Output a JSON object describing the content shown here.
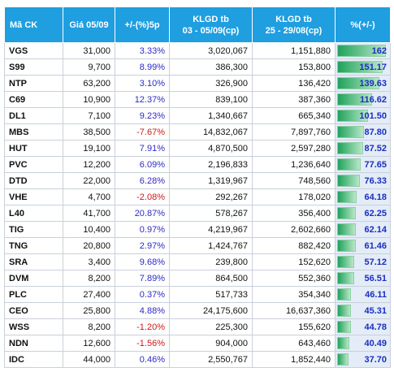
{
  "table": {
    "headers": [
      [
        "Mã CK"
      ],
      [
        "Giá 05/09"
      ],
      [
        "+/-(%)5p"
      ],
      [
        "KLGD tb",
        "03 - 05/09(cp)"
      ],
      [
        "KLGD tb",
        "25 - 29/08(cp)"
      ],
      [
        "%(+/-)"
      ]
    ],
    "rows": [
      [
        "VGS",
        "31,000",
        "3.33%",
        "3,020,067",
        "1,151,880",
        "162"
      ],
      [
        "S99",
        "9,700",
        "8.99%",
        "386,300",
        "153,800",
        "151.17"
      ],
      [
        "NTP",
        "63,200",
        "3.10%",
        "326,900",
        "136,420",
        "139.63"
      ],
      [
        "C69",
        "10,900",
        "12.37%",
        "839,100",
        "387,360",
        "116.62"
      ],
      [
        "DL1",
        "7,100",
        "9.23%",
        "1,340,667",
        "665,340",
        "101.50"
      ],
      [
        "MBS",
        "38,500",
        "-7.67%",
        "14,832,067",
        "7,897,760",
        "87.80"
      ],
      [
        "HUT",
        "19,100",
        "7.91%",
        "4,870,500",
        "2,597,280",
        "87.52"
      ],
      [
        "PVC",
        "12,200",
        "6.09%",
        "2,196,833",
        "1,236,640",
        "77.65"
      ],
      [
        "DTD",
        "22,000",
        "6.28%",
        "1,319,967",
        "748,560",
        "76.33"
      ],
      [
        "VHE",
        "4,700",
        "-2.08%",
        "292,267",
        "178,020",
        "64.18"
      ],
      [
        "L40",
        "41,700",
        "20.87%",
        "578,267",
        "356,400",
        "62.25"
      ],
      [
        "TIG",
        "10,400",
        "0.97%",
        "4,219,967",
        "2,602,660",
        "62.14"
      ],
      [
        "TNG",
        "20,800",
        "2.97%",
        "1,424,767",
        "882,420",
        "61.46"
      ],
      [
        "SRA",
        "3,400",
        "9.68%",
        "239,800",
        "152,620",
        "57.12"
      ],
      [
        "DVM",
        "8,200",
        "7.89%",
        "864,500",
        "552,360",
        "56.51"
      ],
      [
        "PLC",
        "27,400",
        "0.37%",
        "517,733",
        "354,340",
        "46.11"
      ],
      [
        "CEO",
        "25,800",
        "4.88%",
        "24,175,600",
        "16,637,360",
        "45.31"
      ],
      [
        "WSS",
        "8,200",
        "-1.20%",
        "225,300",
        "155,620",
        "44.78"
      ],
      [
        "NDN",
        "12,600",
        "-1.56%",
        "904,000",
        "643,460",
        "40.49"
      ],
      [
        "IDC",
        "44,000",
        "0.46%",
        "2,550,767",
        "1,852,440",
        "37.70"
      ]
    ]
  }
}
